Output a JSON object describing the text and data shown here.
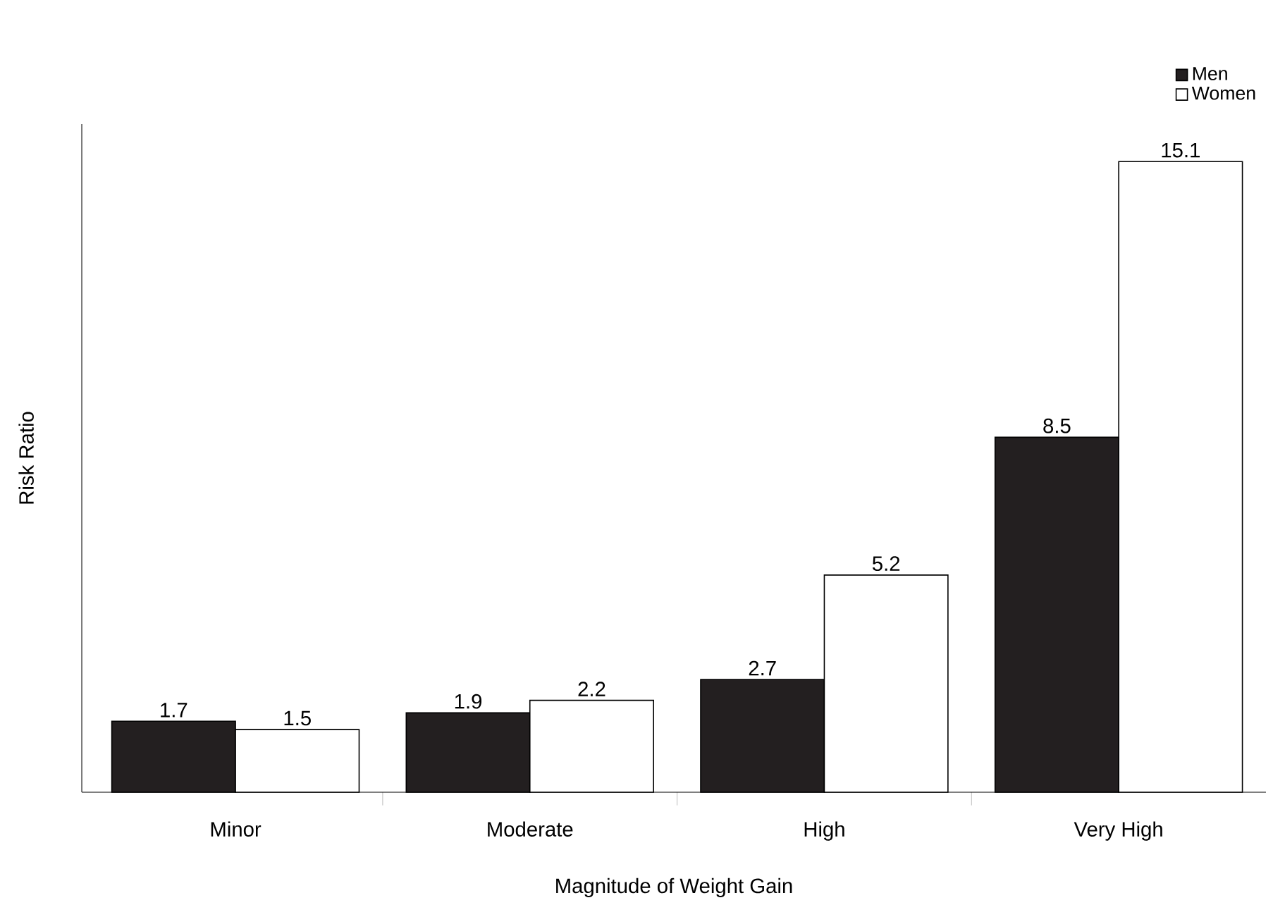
{
  "chart_data": {
    "type": "bar",
    "xlabel": "Magnitude of Weight Gain",
    "ylabel": "Risk Ratio",
    "categories": [
      "Minor",
      "Moderate",
      "High",
      "Very High"
    ],
    "series": [
      {
        "name": "Men",
        "color": "#231f20",
        "values": [
          1.7,
          1.9,
          2.7,
          8.5
        ]
      },
      {
        "name": "Women",
        "color": "#ffffff",
        "values": [
          1.5,
          2.2,
          5.2,
          15.1
        ]
      }
    ],
    "ylim": [
      0,
      16
    ],
    "data_labels": true,
    "legend": "top right"
  }
}
